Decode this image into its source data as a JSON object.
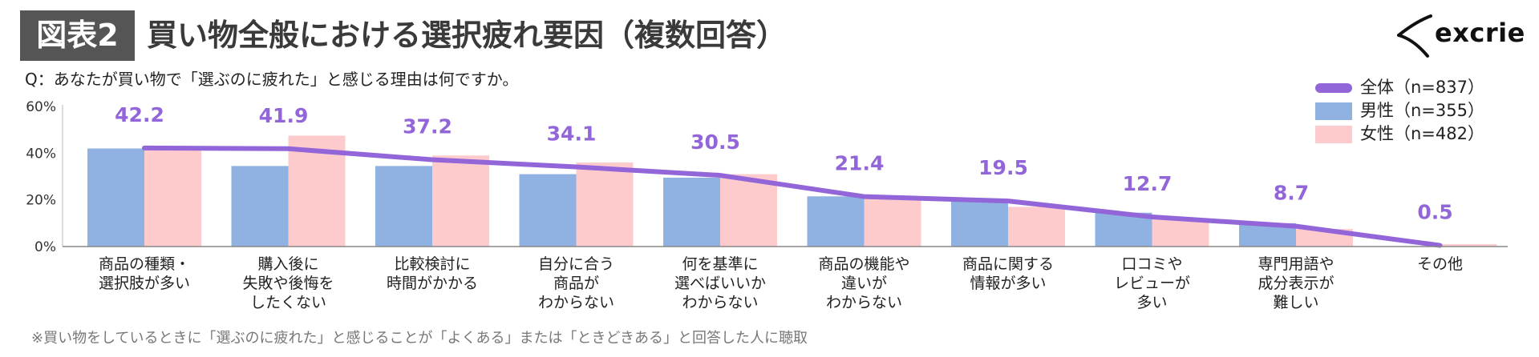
{
  "badge": "図表2",
  "title": "買い物全般における選択疲れ要因（複数回答）",
  "question": "Q：あなたが買い物で「選ぶのに疲れた」と感じる理由は何ですか。",
  "footnote": "※買い物をしているときに「選ぶのに疲れた」と感じることが「よくある」または「ときどきある」と回答した人に聴取",
  "logo": {
    "text": "excrie",
    "icon": "x-swoosh-icon"
  },
  "colors": {
    "total": "#9266d9",
    "male": "#8fb2e3",
    "female": "#fecbcd",
    "badge": "#555555"
  },
  "chart_data": {
    "type": "bar",
    "title": "買い物全般における選択疲れ要因（複数回答）",
    "categories": [
      [
        "商品の種類・",
        "選択肢が多い"
      ],
      [
        "購入後に",
        "失敗や後悔を",
        "したくない"
      ],
      [
        "比較検討に",
        "時間がかかる"
      ],
      [
        "自分に合う",
        "商品が",
        "わからない"
      ],
      [
        "何を基準に",
        "選べばいいか",
        "わからない"
      ],
      [
        "商品の機能や",
        "違いが",
        "わからない"
      ],
      [
        "商品に関する",
        "情報が多い"
      ],
      [
        "口コミや",
        "レビューが",
        "多い"
      ],
      [
        "専門用語や",
        "成分表示が",
        "難しい"
      ],
      [
        "その他"
      ]
    ],
    "series": [
      {
        "name": "全体（n=837）",
        "type": "line",
        "values": [
          42.2,
          41.9,
          37.2,
          34.1,
          30.5,
          21.4,
          19.5,
          12.7,
          8.7,
          0.5
        ]
      },
      {
        "name": "男性（n=355）",
        "type": "bar",
        "values": [
          42,
          34.5,
          34.5,
          31,
          29.5,
          21.5,
          19.5,
          14.5,
          10,
          0
        ]
      },
      {
        "name": "女性（n=482）",
        "type": "bar",
        "values": [
          41.5,
          47.5,
          39,
          36,
          31,
          21,
          17,
          12,
          7.5,
          1
        ]
      }
    ],
    "data_labels": [
      "42.2",
      "41.9",
      "37.2",
      "34.1",
      "30.5",
      "21.4",
      "19.5",
      "12.7",
      "8.7",
      "0.5"
    ],
    "y_ticks": [
      "0%",
      "20%",
      "40%",
      "60%"
    ],
    "ylim": [
      0,
      60
    ],
    "grid": false,
    "legend": "top-right"
  }
}
